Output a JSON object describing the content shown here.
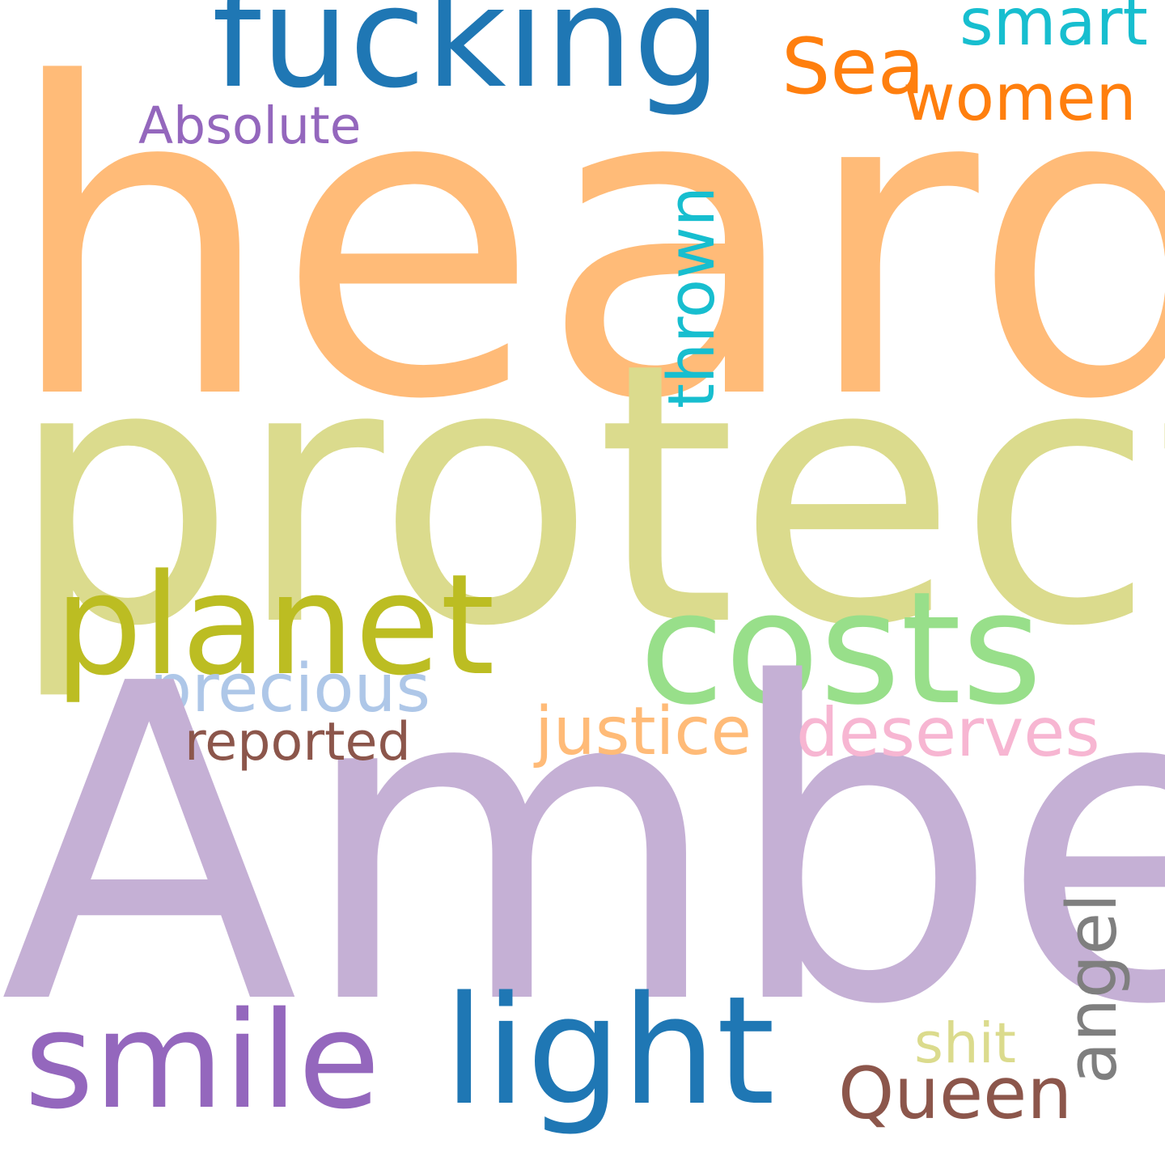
{
  "words": {
    "heard": {
      "text": "heard",
      "color": "#ffbb78"
    },
    "protect": {
      "text": "protect",
      "color": "#dbdb8d"
    },
    "amber": {
      "text": "Amber",
      "color": "#c5b0d5"
    },
    "fucking": {
      "text": "fucking",
      "color": "#1f77b4"
    },
    "costs": {
      "text": "costs",
      "color": "#98df8a"
    },
    "planet": {
      "text": "planet",
      "color": "#bcbd22"
    },
    "smile": {
      "text": "smile",
      "color": "#9467bd"
    },
    "light": {
      "text": "light",
      "color": "#1f77b4"
    },
    "sea": {
      "text": "Sea",
      "color": "#ff7f0e"
    },
    "women": {
      "text": "women",
      "color": "#ff7f0e"
    },
    "smart": {
      "text": "smart",
      "color": "#17becf"
    },
    "absolute": {
      "text": "Absolute",
      "color": "#9467bd"
    },
    "precious": {
      "text": "precious",
      "color": "#aec7e8"
    },
    "justice": {
      "text": "justice",
      "color": "#ffbb78"
    },
    "deserves": {
      "text": "deserves",
      "color": "#f7b6d2"
    },
    "reported": {
      "text": "reported",
      "color": "#8c564b"
    },
    "shit": {
      "text": "shit",
      "color": "#dbdb8d"
    },
    "queen": {
      "text": "Queen",
      "color": "#8c564b"
    },
    "thrown": {
      "text": "thrown",
      "color": "#17becf"
    },
    "angel": {
      "text": "angel",
      "color": "#7f7f7f"
    }
  }
}
